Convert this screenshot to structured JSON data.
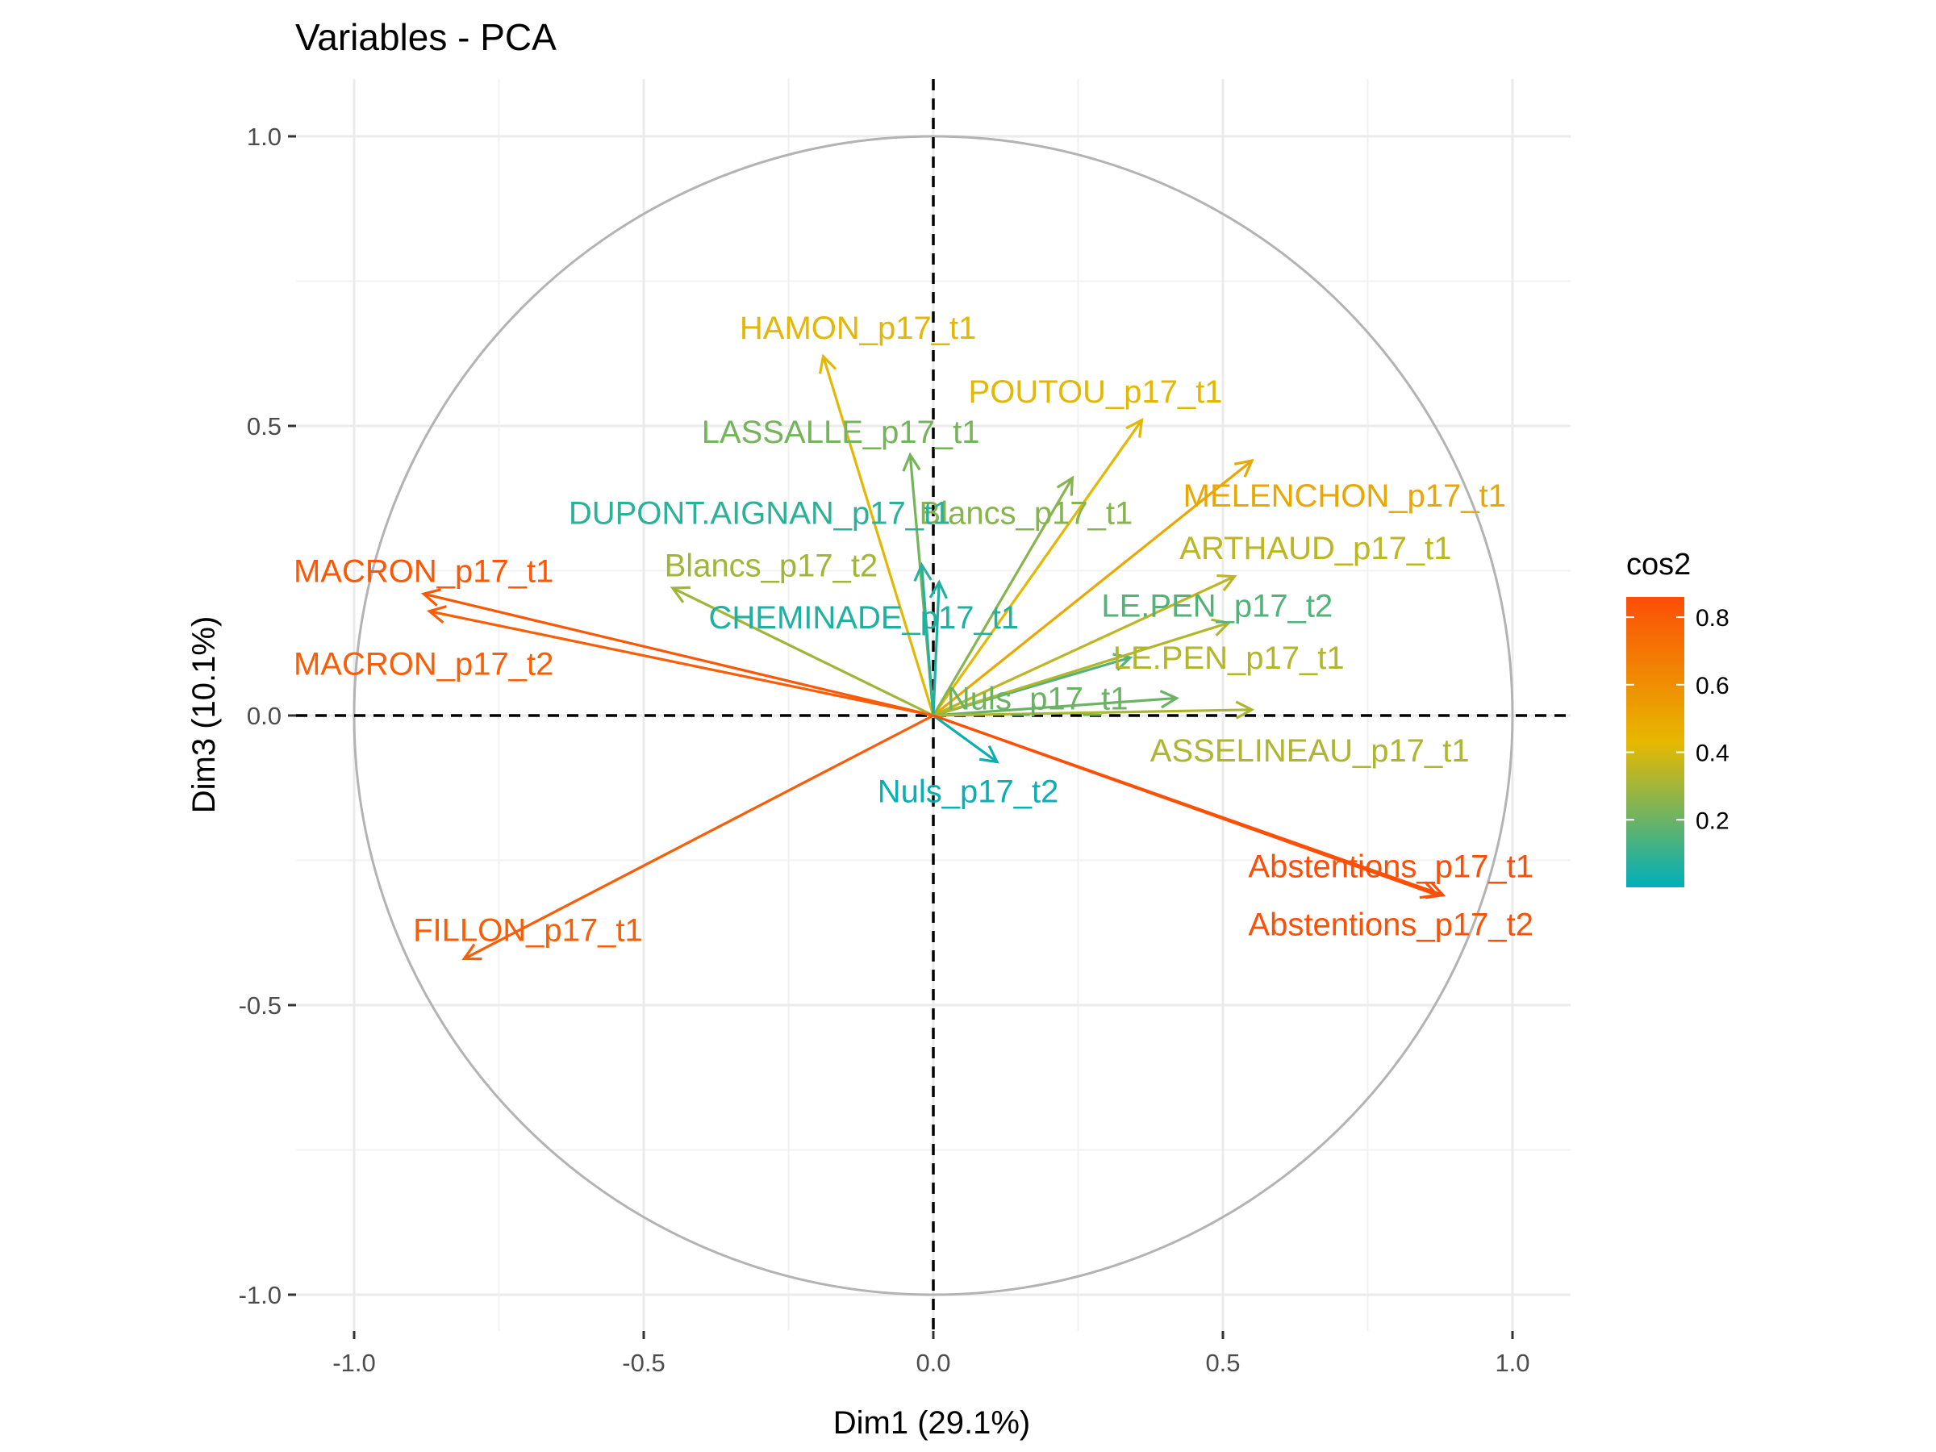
{
  "chart_data": {
    "type": "scatter",
    "subtype": "pca-variable-correlation-circle",
    "title": "Variables - PCA",
    "xlabel": "Dim1 (29.1%)",
    "ylabel": "Dim3 (10.1%)",
    "xlim": [
      -1.0,
      1.0
    ],
    "ylim": [
      -1.0,
      1.0
    ],
    "x_ticks": [
      "-1.0",
      "-0.5",
      "0.0",
      "0.5",
      "1.0"
    ],
    "y_ticks": [
      "1.0",
      "0.5",
      "0.0",
      "-0.5",
      "-1.0"
    ],
    "grid": true,
    "unit_circle": true,
    "legend": {
      "title": "cos2",
      "position": "right",
      "ticks": [
        "0.8",
        "0.6",
        "0.4",
        "0.2"
      ],
      "range": [
        0.0,
        0.86
      ],
      "colors": [
        "#00AFBB",
        "#E7B800",
        "#FC4E07"
      ]
    },
    "variables": [
      {
        "name": "HAMON_p17_t1",
        "x": -0.19,
        "y": 0.62,
        "cos2": 0.42
      },
      {
        "name": "LASSALLE_p17_t1",
        "x": -0.04,
        "y": 0.45,
        "cos2": 0.22
      },
      {
        "name": "POUTOU_p17_t1",
        "x": 0.36,
        "y": 0.51,
        "cos2": 0.42
      },
      {
        "name": "MELENCHON_p17_t1",
        "x": 0.55,
        "y": 0.44,
        "cos2": 0.5
      },
      {
        "name": "Blancs_p17_t1",
        "x": 0.24,
        "y": 0.41,
        "cos2": 0.25
      },
      {
        "name": "DUPONT.AIGNAN_p17_t1",
        "x": -0.02,
        "y": 0.26,
        "cos2": 0.08
      },
      {
        "name": "ARTHAUD_p17_t1",
        "x": 0.52,
        "y": 0.24,
        "cos2": 0.35
      },
      {
        "name": "MACRON_p17_t1",
        "x": -0.88,
        "y": 0.21,
        "cos2": 0.82
      },
      {
        "name": "Blancs_p17_t2",
        "x": -0.45,
        "y": 0.22,
        "cos2": 0.3
      },
      {
        "name": "MACRON_p17_t2",
        "x": -0.87,
        "y": 0.18,
        "cos2": 0.8
      },
      {
        "name": "CHEMINADE_p17_t1",
        "x": 0.01,
        "y": 0.23,
        "cos2": 0.06
      },
      {
        "name": "LE.PEN_p17_t2",
        "x": 0.34,
        "y": 0.1,
        "cos2": 0.15
      },
      {
        "name": "LE.PEN_p17_t1",
        "x": 0.51,
        "y": 0.16,
        "cos2": 0.33
      },
      {
        "name": "Nuls_p17_t1",
        "x": 0.42,
        "y": 0.03,
        "cos2": 0.2
      },
      {
        "name": "ASSELINEAU_p17_t1",
        "x": 0.55,
        "y": 0.01,
        "cos2": 0.32
      },
      {
        "name": "Nuls_p17_t2",
        "x": 0.11,
        "y": -0.08,
        "cos2": 0.02
      },
      {
        "name": "Abstentions_p17_t1",
        "x": 0.88,
        "y": -0.31,
        "cos2": 0.86
      },
      {
        "name": "Abstentions_p17_t2",
        "x": 0.87,
        "y": -0.31,
        "cos2": 0.85
      },
      {
        "name": "FILLON_p17_t1",
        "x": -0.81,
        "y": -0.42,
        "cos2": 0.8
      }
    ]
  }
}
